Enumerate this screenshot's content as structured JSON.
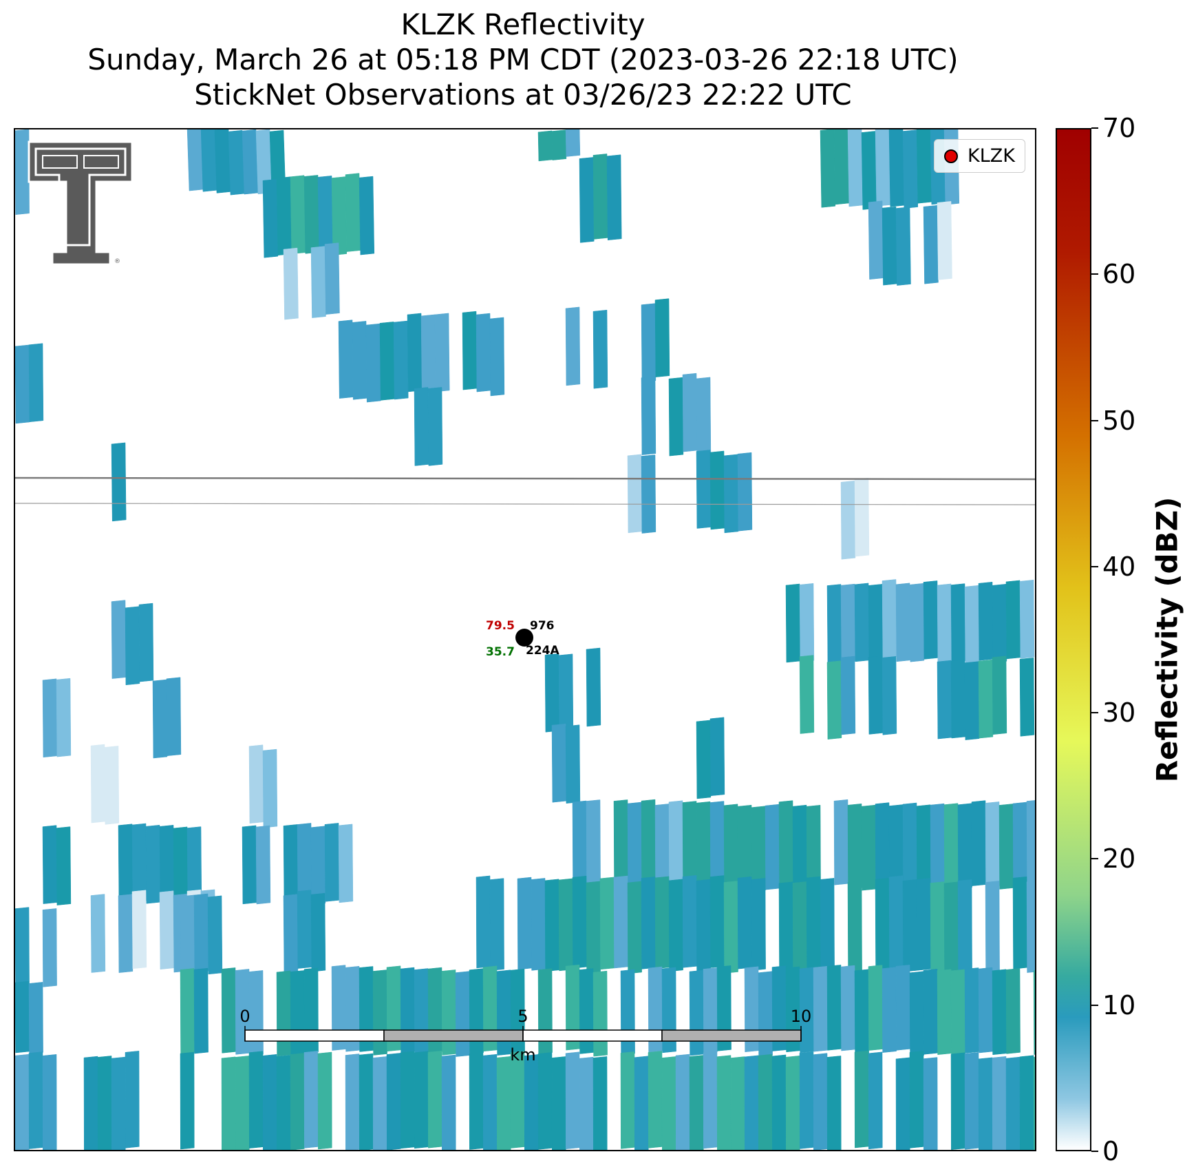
{
  "title": {
    "line1": "KLZK Reflectivity",
    "line2": "Sunday, March 26 at 05:18 PM CDT (2023-03-26 22:18 UTC)",
    "line3": "StickNet Observations at 03/26/23 22:22 UTC"
  },
  "legend": {
    "label": "KLZK"
  },
  "station": {
    "temperature": "79.5",
    "pressure": "976",
    "dewpoint": "35.7",
    "id": "224A"
  },
  "scalebar": {
    "labels": [
      "0",
      "5",
      "10"
    ],
    "unit": "km"
  },
  "colorbar": {
    "label": "Reflectivity (dBZ)",
    "ticks": [
      "0",
      "10",
      "20",
      "30",
      "40",
      "50",
      "60",
      "70"
    ],
    "range": [
      0,
      70
    ]
  },
  "colors": {
    "temperature": "#c00000",
    "dewpoint": "#007000",
    "legend_marker": "#e00000",
    "echo_light": "#d7eaf4",
    "echo_mid": "#5aaad2",
    "echo_strong": "#1a9aaa",
    "echo_green": "#3bb3a0"
  },
  "logo": "texas-tech-double-t-logo"
}
